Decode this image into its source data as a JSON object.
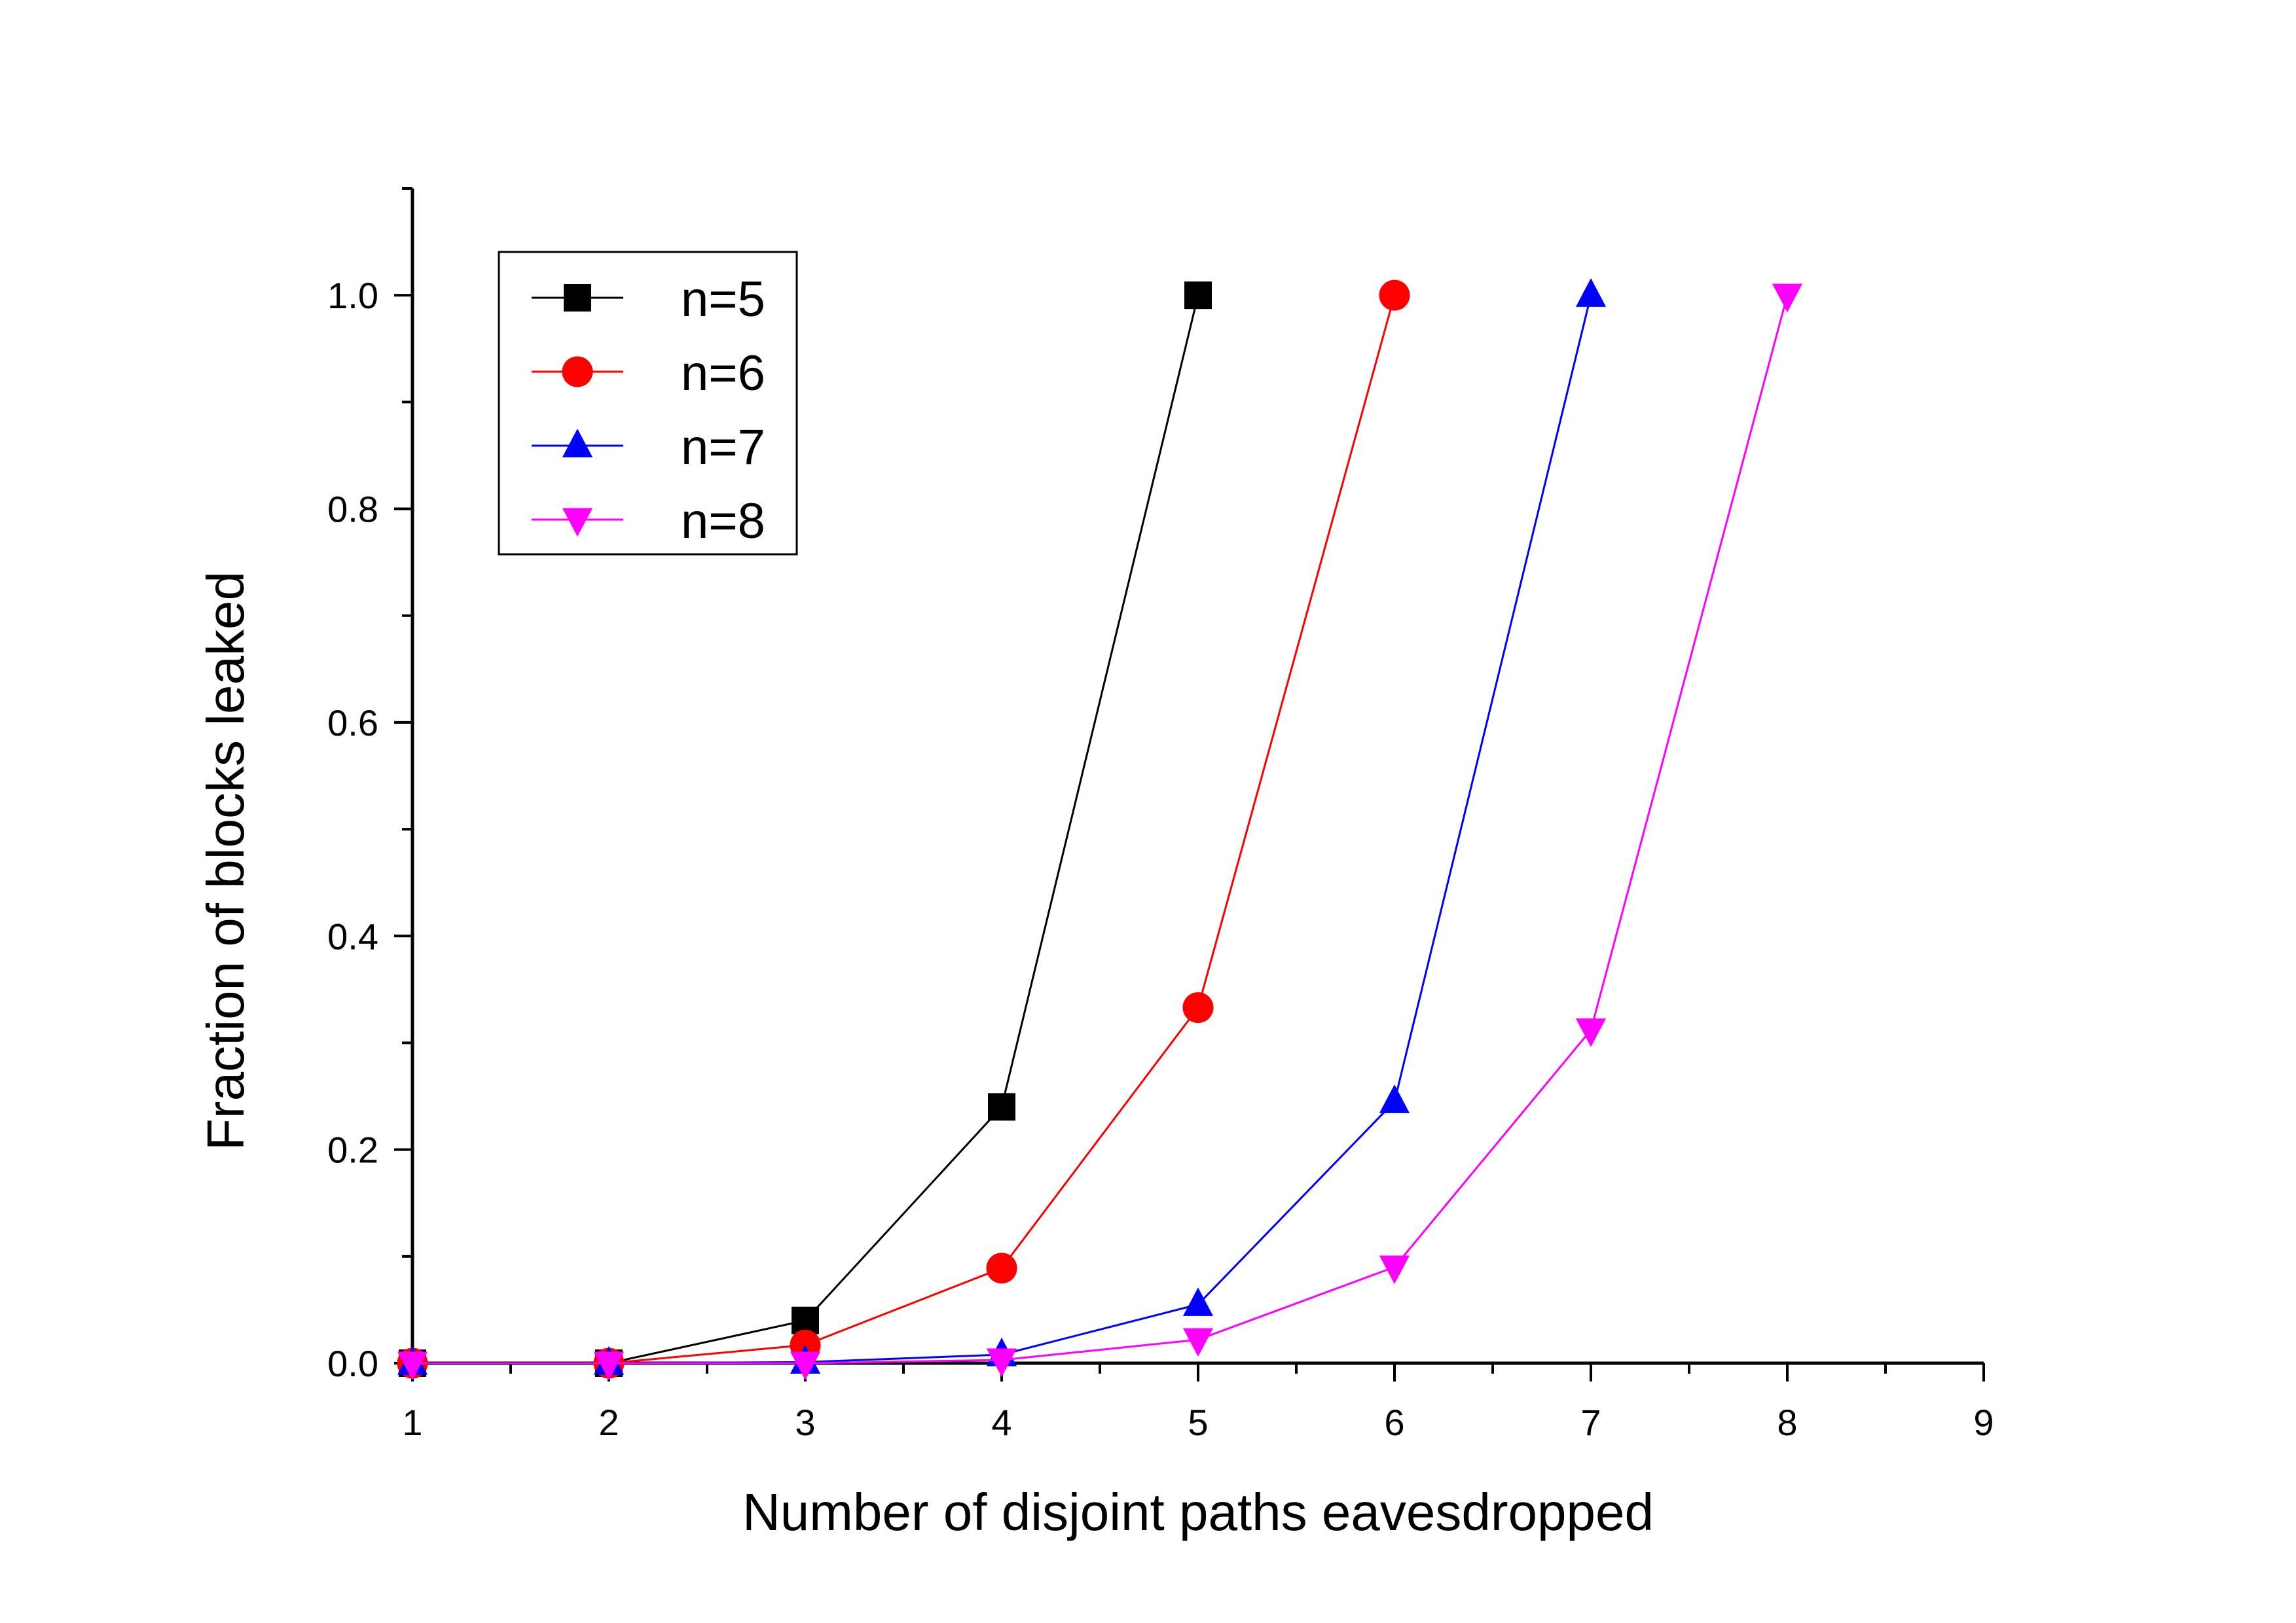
{
  "chart_data": {
    "type": "line",
    "title": "",
    "xlabel": "Number of disjoint paths eavesdropped",
    "ylabel": "Fraction of blocks leaked",
    "xlim": [
      1,
      9
    ],
    "ylim": [
      0,
      1.1
    ],
    "xticks": [
      1,
      2,
      3,
      4,
      5,
      6,
      7,
      8,
      9
    ],
    "xtick_labels": [
      "1",
      "2",
      "3",
      "4",
      "5",
      "6",
      "7",
      "8",
      "9"
    ],
    "yticks": [
      0,
      0.2,
      0.4,
      0.6,
      0.8,
      1.0
    ],
    "ytick_labels": [
      "0.0",
      "0.2",
      "0.4",
      "0.6",
      "0.8",
      "1.0"
    ],
    "grid": false,
    "legend_position": "top-left",
    "series": [
      {
        "name": "n=5",
        "color": "#000000",
        "marker": "square",
        "x": [
          1,
          2,
          3,
          4,
          5
        ],
        "y": [
          0.0,
          0.0,
          0.04,
          0.24,
          1.0
        ]
      },
      {
        "name": "n=6",
        "color": "#ff0000",
        "marker": "circle",
        "x": [
          1,
          2,
          3,
          4,
          5,
          6
        ],
        "y": [
          0.0,
          0.0,
          0.017,
          0.089,
          0.333,
          1.0
        ]
      },
      {
        "name": "n=7",
        "color": "#0000ff",
        "marker": "triangle-up",
        "x": [
          1,
          2,
          3,
          4,
          5,
          6,
          7
        ],
        "y": [
          0.0,
          0.0,
          0.001,
          0.008,
          0.055,
          0.245,
          1.0
        ]
      },
      {
        "name": "n=8",
        "color": "#ff00ff",
        "marker": "triangle-down",
        "x": [
          1,
          2,
          3,
          4,
          5,
          6,
          7,
          8
        ],
        "y": [
          0.0,
          0.0,
          0.0,
          0.003,
          0.022,
          0.09,
          0.312,
          1.0
        ]
      }
    ]
  }
}
